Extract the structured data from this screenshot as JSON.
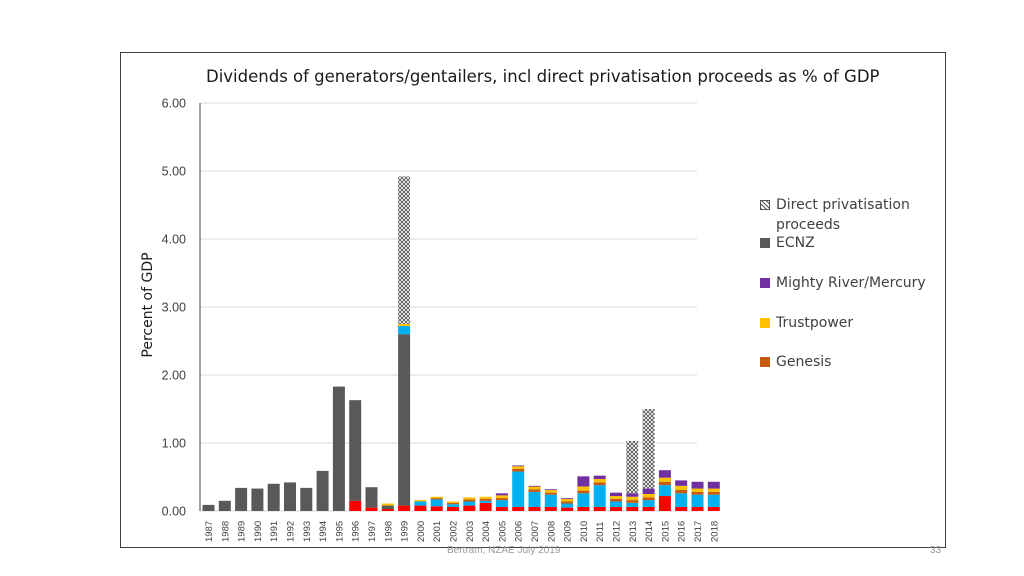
{
  "footer": {
    "credit": "Bertram, NZAE July 2019",
    "page_number": "33"
  },
  "chart_data": {
    "type": "bar",
    "stacked": true,
    "title": "Dividends of generators/gentailers, incl direct privatisation  proceeds as % of GDP",
    "xlabel": "",
    "ylabel": "Percent of GDP",
    "ylim": [
      0,
      6
    ],
    "yticks": [
      "0.00",
      "1.00",
      "2.00",
      "3.00",
      "4.00",
      "5.00",
      "6.00"
    ],
    "grid": true,
    "legend_position": "right",
    "categories": [
      "1987",
      "1988",
      "1989",
      "1990",
      "1991",
      "1992",
      "1993",
      "1994",
      "1995",
      "1996",
      "1997",
      "1998",
      "1999",
      "2000",
      "2001",
      "2002",
      "2003",
      "2004",
      "2005",
      "2006",
      "2007",
      "2008",
      "2009",
      "2010",
      "2011",
      "2012",
      "2013",
      "2014",
      "2015",
      "2016",
      "2017",
      "2018"
    ],
    "series": [
      {
        "name": "",
        "color": "#ff0000",
        "values": [
          0,
          0,
          0,
          0,
          0,
          0,
          0,
          0,
          0,
          0.15,
          0.05,
          0.03,
          0.08,
          0.08,
          0.07,
          0.06,
          0.08,
          0.12,
          0.06,
          0.06,
          0.06,
          0.06,
          0.05,
          0.06,
          0.06,
          0.06,
          0.06,
          0.06,
          0.22,
          0.06,
          0.06,
          0.06
        ]
      },
      {
        "name": "ECNZ",
        "color": "#595959",
        "values": [
          0.09,
          0.15,
          0.34,
          0.33,
          0.4,
          0.42,
          0.34,
          0.59,
          1.83,
          1.48,
          0.3,
          0.05,
          2.52,
          0,
          0,
          0,
          0,
          0,
          0,
          0,
          0,
          0,
          0,
          0,
          0,
          0,
          0,
          0,
          0,
          0,
          0,
          0
        ]
      },
      {
        "name": "",
        "color": "#00b0f0",
        "values": [
          0,
          0,
          0,
          0,
          0,
          0,
          0,
          0,
          0,
          0,
          0,
          0,
          0.12,
          0.06,
          0.1,
          0.04,
          0.06,
          0.03,
          0.1,
          0.52,
          0.22,
          0.18,
          0.06,
          0.2,
          0.32,
          0.08,
          0.06,
          0.1,
          0.16,
          0.2,
          0.18,
          0.18
        ]
      },
      {
        "name": "Genesis",
        "color": "#c55a11",
        "values": [
          0,
          0,
          0,
          0,
          0,
          0,
          0,
          0,
          0,
          0,
          0,
          0,
          0,
          0,
          0.02,
          0.02,
          0.03,
          0.03,
          0.03,
          0.04,
          0.04,
          0.03,
          0.03,
          0.04,
          0.04,
          0.04,
          0.04,
          0.04,
          0.05,
          0.05,
          0.04,
          0.04
        ]
      },
      {
        "name": "Trustpower",
        "color": "#ffc000",
        "values": [
          0,
          0,
          0,
          0,
          0,
          0,
          0,
          0,
          0,
          0,
          0,
          0.03,
          0.03,
          0.02,
          0.02,
          0.02,
          0.03,
          0.03,
          0.04,
          0.04,
          0.04,
          0.04,
          0.04,
          0.06,
          0.05,
          0.04,
          0.05,
          0.05,
          0.06,
          0.06,
          0.05,
          0.05
        ]
      },
      {
        "name": "Mighty River/Mercury",
        "color": "#7030a0",
        "values": [
          0,
          0,
          0,
          0,
          0,
          0,
          0,
          0,
          0,
          0,
          0,
          0,
          0,
          0,
          0,
          0,
          0,
          0,
          0.03,
          0.01,
          0.01,
          0.01,
          0.01,
          0.15,
          0.05,
          0.05,
          0.05,
          0.08,
          0.11,
          0.08,
          0.1,
          0.1
        ]
      },
      {
        "name": "Direct privatisation proceeds",
        "color": "#555555",
        "pattern": "crosshatch",
        "values": [
          0,
          0,
          0,
          0,
          0,
          0,
          0,
          0,
          0,
          0,
          0,
          0,
          2.17,
          0,
          0,
          0,
          0,
          0,
          0,
          0,
          0,
          0,
          0,
          0,
          0,
          0,
          0.77,
          1.17,
          0,
          0,
          0,
          0
        ]
      }
    ],
    "legend": [
      "Direct privatisation proceeds",
      "ECNZ",
      "Mighty River/Mercury",
      "Trustpower",
      "Genesis"
    ]
  }
}
